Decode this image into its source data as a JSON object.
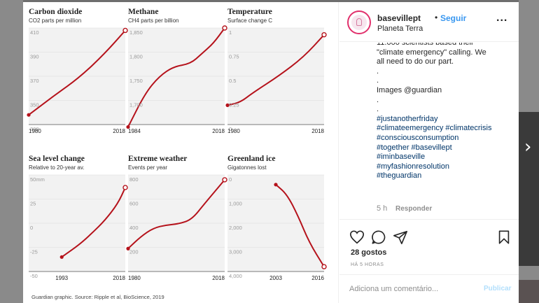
{
  "post": {
    "username": "basevillept",
    "separator": "•",
    "follow_label": "Seguir",
    "location": "Planeta Terra",
    "more_label": "...",
    "caption_lines": [
      {
        "text": "11.000 scientists based their",
        "tag": false
      },
      {
        "text": "\"climate emergency\" calling. We",
        "tag": false
      },
      {
        "text": "all need to do our part.",
        "tag": false
      },
      {
        "text": ".",
        "tag": false
      },
      {
        "text": ".",
        "tag": false
      },
      {
        "text": "Images @guardian",
        "tag": false
      },
      {
        "text": ".",
        "tag": false
      },
      {
        "text": ".",
        "tag": false
      },
      {
        "text": "#justanotherfriday",
        "tag": true
      },
      {
        "text": "#climateemergency #climatecrisis",
        "tag": true
      },
      {
        "text": "#consciousconsumption",
        "tag": true
      },
      {
        "text": "#together #basevillept",
        "tag": true
      },
      {
        "text": "#iminbaseville",
        "tag": true
      },
      {
        "text": "#myfashionresolution",
        "tag": true
      },
      {
        "text": "#theguardian",
        "tag": true
      }
    ],
    "caption_age": "5 h",
    "reply_label": "Responder",
    "likes": "28 gostos",
    "time_ago": "HÁ 5 HORAS",
    "comment_placeholder": "Adiciona um comentário...",
    "publish_label": "Publicar"
  },
  "icons": {
    "like": "heart-icon",
    "comment": "comment-icon",
    "share": "share-icon",
    "save": "bookmark-icon",
    "next": "chevron-right-icon"
  },
  "colors": {
    "line": "#b5121b",
    "panel_shade": "#f2f2f2",
    "follow": "#3897f0",
    "hashtag": "#003569"
  },
  "source_note": "Guardian graphic. Source: Ripple et al, BioScience, 2019",
  "chart_data": [
    {
      "type": "line",
      "title": "Carbon dioxide",
      "subtitle": "CO2 parts per million",
      "yticks": [
        "410",
        "390",
        "370",
        "350",
        "330"
      ],
      "ylim": [
        330,
        410
      ],
      "xlabels": [
        "1980",
        "2018"
      ],
      "xlim": [
        1980,
        2018
      ],
      "x": [
        1980,
        1990,
        2000,
        2010,
        2018
      ],
      "y": [
        338,
        354,
        369,
        389,
        408
      ]
    },
    {
      "type": "line",
      "title": "Methane",
      "subtitle": "CH4 parts per billion",
      "yticks": [
        "1,850",
        "1,800",
        "1,750",
        "1,700",
        ""
      ],
      "ylim": [
        1650,
        1850
      ],
      "xlabels": [
        "1984",
        "2018"
      ],
      "xlim": [
        1984,
        2018
      ],
      "x": [
        1984,
        1990,
        1995,
        2000,
        2006,
        2010,
        2014,
        2018
      ],
      "y": [
        1645,
        1715,
        1750,
        1770,
        1776,
        1797,
        1818,
        1850
      ]
    },
    {
      "type": "line",
      "title": "Temperature",
      "subtitle": "Surface change C",
      "yticks": [
        "1",
        "0.75",
        "0.5",
        "0.25",
        "0"
      ],
      "ylim": [
        0,
        1
      ],
      "xlabels": [
        "1980",
        "2018"
      ],
      "xlim": [
        1980,
        2018
      ],
      "x": [
        1980,
        1985,
        1990,
        2000,
        2010,
        2018
      ],
      "y": [
        0.2,
        0.23,
        0.33,
        0.5,
        0.7,
        0.93
      ]
    },
    {
      "type": "line",
      "title": "Sea level change",
      "subtitle": "Relative to 20-year av.",
      "yticks": [
        "50mm",
        "25",
        "0",
        "-25",
        "-50"
      ],
      "ylim": [
        -50,
        50
      ],
      "xlabels": [
        "1993",
        "2018"
      ],
      "xlim": [
        1980,
        2018
      ],
      "x": [
        1993,
        2000,
        2005,
        2010,
        2015,
        2018
      ],
      "y": [
        -35,
        -22,
        -10,
        3,
        20,
        37
      ]
    },
    {
      "type": "line",
      "title": "Extreme weather",
      "subtitle": "Events per year",
      "yticks": [
        "800",
        "600",
        "400",
        "200",
        ""
      ],
      "ylim": [
        0,
        800
      ],
      "xlabels": [
        "1980",
        "2018"
      ],
      "xlim": [
        1980,
        2018
      ],
      "x": [
        1980,
        1985,
        1990,
        1995,
        2000,
        2005,
        2010,
        2018
      ],
      "y": [
        190,
        290,
        360,
        385,
        395,
        430,
        560,
        760
      ]
    },
    {
      "type": "line",
      "title": "Greenland ice",
      "subtitle": "Gigatonnes lost",
      "yticks": [
        "0",
        "1,000",
        "2,000",
        "3,000",
        "4,000"
      ],
      "ylim": [
        0,
        4000
      ],
      "y_inverted": true,
      "xlabels": [
        "2003",
        "2016"
      ],
      "xlim": [
        1990,
        2016
      ],
      "x": [
        2003,
        2006,
        2009,
        2012,
        2016
      ],
      "y": [
        400,
        800,
        1700,
        2800,
        3800
      ]
    }
  ]
}
